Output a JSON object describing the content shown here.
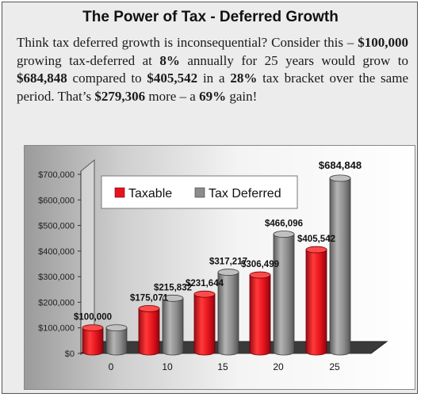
{
  "header": {
    "title": "The Power of Tax - Deferred Growth"
  },
  "intro": {
    "p1": "Think tax deferred growth is inconsequential? Consider this – ",
    "amount_start": "$100,000",
    "p2": " growing tax-deferred at ",
    "rate": "8%",
    "p3": " annually for 25 years would grow to ",
    "amount_deferred": "$684,848",
    "p4": " compared to ",
    "amount_taxable": "$405,542",
    "p5": " in a ",
    "bracket": "28%",
    "p6": " tax bracket over the same period. That’s ",
    "difference": "$279,306",
    "p7": " more – a ",
    "gain": "69%",
    "p8": " gain!"
  },
  "colors": {
    "taxable": "#e8121e",
    "tax_deferred": "#8c8c8c",
    "floor": "#3a3a3a"
  },
  "chart_data": {
    "type": "bar",
    "categories": [
      "0",
      "10",
      "15",
      "20",
      "25"
    ],
    "series": [
      {
        "name": "Taxable",
        "values": [
          100000,
          175071,
          231644,
          306499,
          405542
        ],
        "labels": [
          "$100,000",
          "$175,071",
          "$231,644",
          "$306,499",
          "$405,542"
        ]
      },
      {
        "name": "Tax Deferred",
        "values": [
          100000,
          215832,
          317217,
          466096,
          684848
        ],
        "labels": [
          "",
          "$215,832",
          "$317,217",
          "$466,096",
          "$684,848"
        ]
      }
    ],
    "ylim": [
      0,
      700000
    ],
    "yticks": [
      0,
      100000,
      200000,
      300000,
      400000,
      500000,
      600000,
      700000
    ],
    "ytick_labels": [
      "$0",
      "$100,000",
      "$200,000",
      "$300,000",
      "$400,000",
      "$500,000",
      "$600,000",
      "$700,000"
    ],
    "legend_position": "top-left",
    "grid": false
  }
}
